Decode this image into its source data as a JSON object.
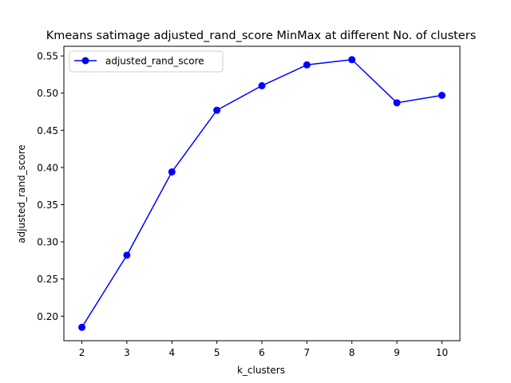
{
  "chart_data": {
    "type": "line",
    "title": "Kmeans satimage adjusted_rand_score MinMax at different No. of clusters",
    "xlabel": "k_clusters",
    "ylabel": "adjusted_rand_score",
    "x": [
      2,
      3,
      4,
      5,
      6,
      7,
      8,
      9,
      10
    ],
    "xticks": [
      2,
      3,
      4,
      5,
      6,
      7,
      8,
      9,
      10
    ],
    "yticks": [
      0.2,
      0.25,
      0.3,
      0.35,
      0.4,
      0.45,
      0.5,
      0.55
    ],
    "xlim": [
      1.6,
      10.4
    ],
    "ylim": [
      0.167,
      0.563
    ],
    "grid": false,
    "legend_position": "upper-left",
    "series": [
      {
        "name": "adjusted_rand_score",
        "color": "#0000ff",
        "marker": "circle",
        "values": [
          0.185,
          0.282,
          0.394,
          0.477,
          0.51,
          0.538,
          0.545,
          0.487,
          0.497
        ]
      }
    ]
  }
}
